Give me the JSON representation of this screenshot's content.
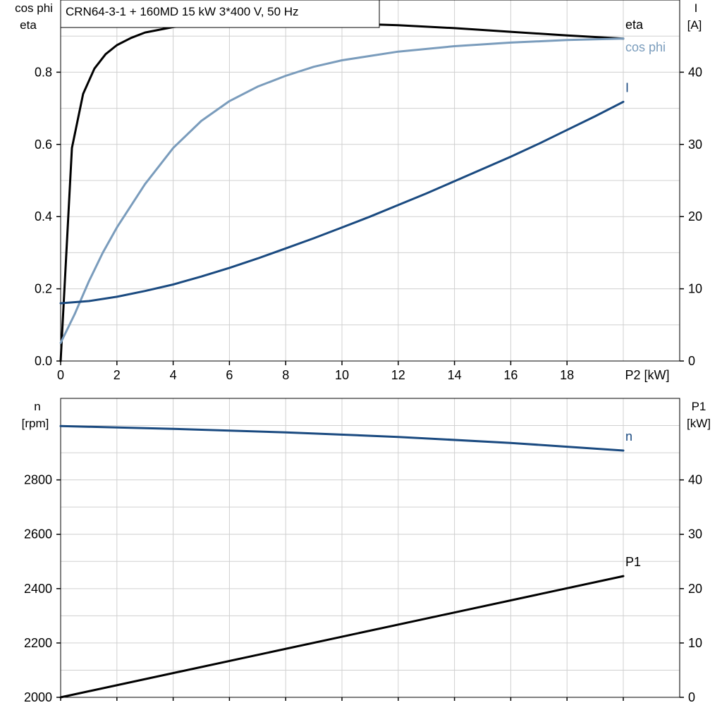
{
  "title": "CRN64-3-1 + 160MD   15 kW   3*400 V, 50 Hz",
  "colors": {
    "eta": "#000000",
    "cos_phi": "#7a9cbc",
    "current": "#1a4a80",
    "speed": "#1a4a80",
    "p1": "#000000",
    "grid": "#d0d0d0"
  },
  "chart_data": [
    {
      "type": "line",
      "panel": "top",
      "xlabel": "P2 [kW]",
      "xlim": [
        0,
        20
      ],
      "x_ticks": [
        "0",
        "2",
        "4",
        "6",
        "8",
        "10",
        "12",
        "14",
        "16",
        "18"
      ],
      "y_left_label_line1": "cos phi",
      "y_left_label_line2": "eta",
      "ylim_left": [
        0,
        1.0
      ],
      "y_left_ticks": [
        "0.0",
        "0.2",
        "0.4",
        "0.6",
        "0.8"
      ],
      "y_right_label_line1": "I",
      "y_right_label_line2": "[A]",
      "ylim_right": [
        0,
        50
      ],
      "y_right_ticks": [
        "0",
        "10",
        "20",
        "30",
        "40"
      ],
      "grid": true,
      "series": [
        {
          "name": "eta",
          "axis": "left",
          "x": [
            0,
            0.4,
            0.8,
            1.2,
            1.6,
            2.0,
            2.5,
            3.0,
            4.0,
            5.0,
            6.0,
            8.0,
            10.0,
            12.0,
            14.0,
            16.0,
            18.0,
            20.0
          ],
          "y": [
            0.0,
            0.59,
            0.74,
            0.81,
            0.85,
            0.875,
            0.895,
            0.91,
            0.925,
            0.932,
            0.936,
            0.938,
            0.935,
            0.93,
            0.922,
            0.912,
            0.902,
            0.893
          ]
        },
        {
          "name": "cos phi",
          "axis": "left",
          "x": [
            0,
            0.5,
            1,
            1.5,
            2,
            3,
            4,
            5,
            6,
            7,
            8,
            9,
            10,
            12,
            14,
            16,
            18,
            20
          ],
          "y": [
            0.05,
            0.13,
            0.22,
            0.3,
            0.37,
            0.49,
            0.59,
            0.665,
            0.72,
            0.76,
            0.79,
            0.815,
            0.833,
            0.857,
            0.872,
            0.882,
            0.889,
            0.893
          ]
        },
        {
          "name": "I",
          "axis": "right",
          "x": [
            0,
            1,
            2,
            3,
            4,
            5,
            6,
            7,
            8,
            9,
            10,
            11,
            12,
            13,
            14,
            15,
            16,
            17,
            18,
            19,
            20
          ],
          "y": [
            8.0,
            8.3,
            8.9,
            9.7,
            10.6,
            11.7,
            12.9,
            14.2,
            15.6,
            17.0,
            18.5,
            20.0,
            21.6,
            23.2,
            24.9,
            26.6,
            28.3,
            30.1,
            32.0,
            33.9,
            35.9
          ]
        }
      ]
    },
    {
      "type": "line",
      "panel": "bottom",
      "xlim": [
        0,
        20
      ],
      "y_left_label_line1": "n",
      "y_left_label_line2": "[rpm]",
      "ylim_left": [
        2000,
        3100
      ],
      "y_left_ticks": [
        "2000",
        "2200",
        "2400",
        "2600",
        "2800"
      ],
      "y_right_label_line1": "P1",
      "y_right_label_line2": "[kW]",
      "ylim_right": [
        0,
        55
      ],
      "y_right_ticks": [
        "0",
        "10",
        "20",
        "30",
        "40"
      ],
      "grid": true,
      "series": [
        {
          "name": "n",
          "axis": "left",
          "x": [
            0,
            4,
            8,
            12,
            16,
            20
          ],
          "y": [
            2998,
            2988,
            2975,
            2958,
            2936,
            2908
          ]
        },
        {
          "name": "P1",
          "axis": "right",
          "x": [
            0,
            20
          ],
          "y": [
            0,
            22.3
          ]
        }
      ]
    }
  ]
}
